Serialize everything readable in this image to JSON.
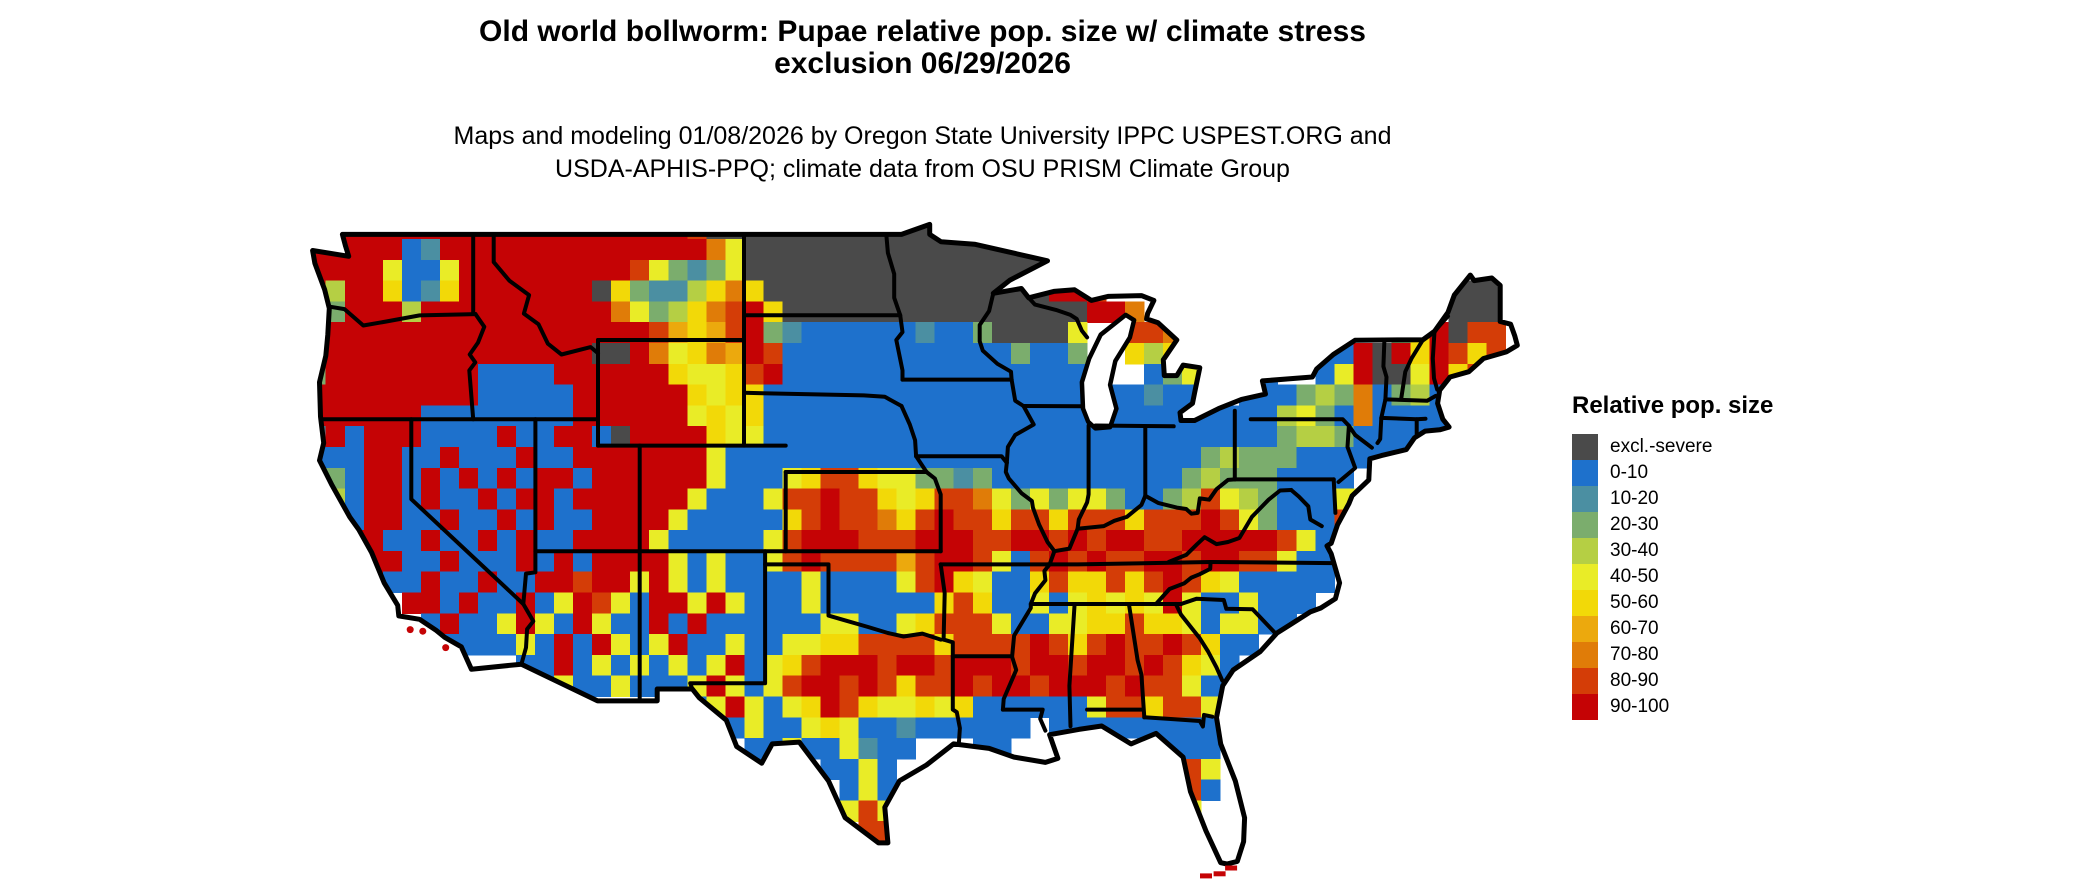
{
  "title": {
    "line1": "Old world bollworm: Pupae relative pop. size w/ climate stress",
    "line2": "exclusion 06/29/2026"
  },
  "subtitle": {
    "line1": "Maps and modeling 01/08/2026 by Oregon State University IPPC USPEST.ORG and",
    "line2": "USDA-APHIS-PPQ; climate data from OSU PRISM Climate Group"
  },
  "legend": {
    "title": "Relative pop. size",
    "items": [
      {
        "label": "excl.-severe",
        "color": "#4a4a4a"
      },
      {
        "label": "0-10",
        "color": "#1e71cc"
      },
      {
        "label": "10-20",
        "color": "#4b8fa2"
      },
      {
        "label": "20-30",
        "color": "#7bad6d"
      },
      {
        "label": "30-40",
        "color": "#b5cf44"
      },
      {
        "label": "40-50",
        "color": "#e9ec27"
      },
      {
        "label": "50-60",
        "color": "#f2d908"
      },
      {
        "label": "60-70",
        "color": "#eca90d"
      },
      {
        "label": "70-80",
        "color": "#e07c08"
      },
      {
        "label": "80-90",
        "color": "#d43d07"
      },
      {
        "label": "90-100",
        "color": "#c50305"
      }
    ]
  },
  "map": {
    "palette": {
      "E": "#4a4a4a",
      "0": "#1e71cc",
      "1": "#4b8fa2",
      "2": "#7bad6d",
      "3": "#b5cf44",
      "4": "#e9ec27",
      "5": "#f2d908",
      "6": "#eca90d",
      "7": "#e07c08",
      "8": "#d43d07",
      "9": "#c50305"
    },
    "no_data_char": ".",
    "border_color": "#000000",
    "water_color": "#ffffff",
    "grid_rows": [
      "999999999999999999998EEEEEEEEEEEE...............................",
      "99999019999999999999974EEEEEEEEEEEEEEEE.........................",
      "99994004999999999842124EEEEEEEEEEEEEEEE.........................",
      "939950159999999E52113575EEEEEEEEEEEEEEE998..................EEE.",
      "9299939999999999742357895EEEEEEEEEEEEEEEE997................EEE.",
      "2999999999999999998656892100000010 02EEEE4..887...........259E88.",
      "299999999999999EE9745769800000000000020 02..535.......009E959858.",
      "299999999000099999954458900000000000000000..0242..0..049EE49589.",
      "99999999900000999999545500000000000000000.00100..00023270 2300...",
      "9999990000000099999945450000000000000000000000000003420700000...",
      "19099900009009 90E99995440000000000000000000000000002332000000....",
      "0009900900090099999994000000000000000000000000023222000 0000.....",
      "1209909090909909999994000458854422120000000000232220000.........",
      "0309909009099099999940004889885458874242442002384320004 4.........",
      "09099009009090099994000005898875898858858885888984200 08.........",
      "00990090090900999940000048999888999889989899889999984 0...........",
      "1909900900090909999404004898888689984089898899899884000 0.........",
      "090900900900998994940400004000048954005855858985400000...........",
      ".....99090090498409949400040000005850040454549400400 0...........",
      "......0900494094009090000004400458884004455855404400............",
      ".......000040909404900400445588885888898589889850 0...............",
      "...........00904040404904589998998999899899898540...............",
      "............04004000494048998985889899899989884 00...............",
      "....................049404598544545000000488588400..............",
      "......................0400454001000000.000000000.0.............",
      ".......................004004100...00.......0000...............",
      "...........................0040.............488 4...............",
      "............................040.............09 80...............",
      "............................484..............04................",
      ".............................88..............00................",
      "..............................4..............00................",
      "................................................................"
    ]
  }
}
